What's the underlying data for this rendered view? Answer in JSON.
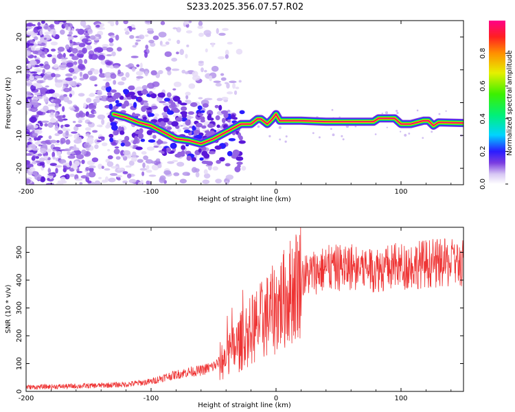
{
  "title": "S233.2025.356.07.57.R02",
  "chart_data": [
    {
      "type": "heatmap",
      "title": "S233.2025.356.07.57.R02",
      "xlabel": "Height of straight line (km)",
      "ylabel": "Frequency (Hz)",
      "xlim": [
        -200,
        150
      ],
      "ylim": [
        -25,
        25
      ],
      "xticks": [
        "-200",
        "-100",
        "0",
        "100"
      ],
      "yticks": [
        "20",
        "10",
        "0",
        "-10",
        "-20"
      ],
      "colorbar": {
        "label": "Normalized spectral amplitude",
        "range": [
          0.0,
          1.0
        ],
        "ticks": [
          "0.0",
          "0.2",
          "0.4",
          "0.6",
          "0.8"
        ]
      },
      "ridge": {
        "description": "strong narrow-band signal",
        "points": [
          {
            "x": -130,
            "y": -3.5
          },
          {
            "x": -120,
            "y": -4.5
          },
          {
            "x": -110,
            "y": -6.0
          },
          {
            "x": -100,
            "y": -7.0
          },
          {
            "x": -90,
            "y": -9.0
          },
          {
            "x": -80,
            "y": -11.0
          },
          {
            "x": -70,
            "y": -11.5
          },
          {
            "x": -60,
            "y": -12.5
          },
          {
            "x": -50,
            "y": -11.0
          },
          {
            "x": -28,
            "y": -6.5
          },
          {
            "x": -20,
            "y": -6.5
          },
          {
            "x": -15,
            "y": -5.0
          },
          {
            "x": -12,
            "y": -5.0
          },
          {
            "x": -7,
            "y": -6.5
          },
          {
            "x": -3,
            "y": -5.0
          },
          {
            "x": 0,
            "y": -3.5
          },
          {
            "x": 3,
            "y": -5.5
          },
          {
            "x": 10,
            "y": -5.5
          },
          {
            "x": 20,
            "y": -5.5
          },
          {
            "x": 40,
            "y": -5.8
          },
          {
            "x": 60,
            "y": -5.8
          },
          {
            "x": 78,
            "y": -5.8
          },
          {
            "x": 82,
            "y": -4.8
          },
          {
            "x": 95,
            "y": -4.8
          },
          {
            "x": 100,
            "y": -6.5
          },
          {
            "x": 108,
            "y": -6.5
          },
          {
            "x": 118,
            "y": -5.5
          },
          {
            "x": 122,
            "y": -5.5
          },
          {
            "x": 126,
            "y": -7.0
          },
          {
            "x": 130,
            "y": -6.0
          },
          {
            "x": 150,
            "y": -6.2
          }
        ]
      }
    },
    {
      "type": "line",
      "xlabel": "Height of straight line (km)",
      "ylabel": "SNR (10 * v/v)",
      "xlim": [
        -200,
        150
      ],
      "ylim": [
        0,
        590
      ],
      "xticks": [
        "-200",
        "-100",
        "0",
        "100"
      ],
      "yticks": [
        "0",
        "100",
        "200",
        "300",
        "400",
        "500"
      ],
      "color": "#ee3333",
      "trend": {
        "x": [
          -200,
          -150,
          -120,
          -100,
          -90,
          -80,
          -70,
          -60,
          -50,
          -40,
          -30,
          -20,
          -10,
          0,
          10,
          20,
          30,
          40,
          60,
          80,
          100,
          120,
          150
        ],
        "y": [
          15,
          20,
          25,
          35,
          50,
          60,
          70,
          75,
          90,
          120,
          170,
          220,
          260,
          300,
          350,
          410,
          430,
          440,
          450,
          440,
          450,
          460,
          460
        ]
      }
    }
  ]
}
